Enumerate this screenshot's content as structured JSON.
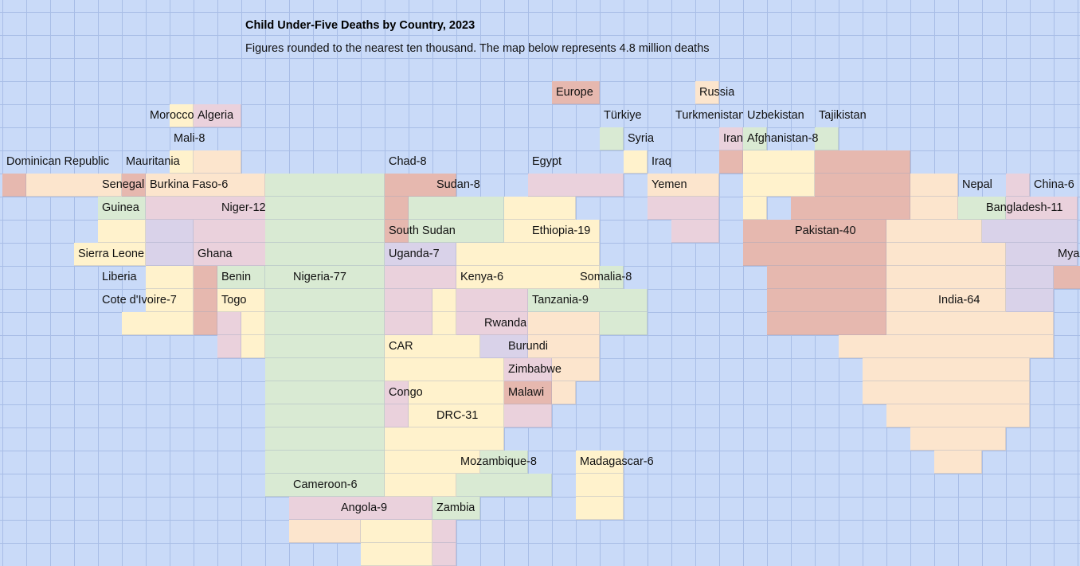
{
  "title": "Child Under-Five Deaths by Country, 2023",
  "subtitle": "Figures rounded to the nearest ten thousand. The map below represents 4.8 million deaths",
  "colors": {
    "background": "#c9daf8",
    "grid": "#a8bde6",
    "yellow": "#fff2cc",
    "orange": "#fce5cd",
    "green": "#d9ead3",
    "red": "#e6b8af",
    "pink": "#ead1dc",
    "purple": "#d9d2e9"
  },
  "labels": [
    "Europe",
    "Russia",
    "Morocco",
    "Algeria",
    "Türkiye",
    "Turkmenistan",
    "Uzbekistan",
    "Tajikistan",
    "Mali-8",
    "Syria",
    "Iran",
    "Afghanistan-8",
    "Dominican Republic",
    "Mauritania",
    "Chad-8",
    "Egypt",
    "Iraq",
    "Senegal",
    "Burkina Faso-6",
    "Sudan-8",
    "Yemen",
    "Nepal",
    "China-6",
    "Guinea",
    "Niger-12",
    "Bangladesh-11",
    "South Sudan",
    "Ethiopia-19",
    "Pakistan-40",
    "Sierra Leone",
    "Ghana",
    "Uganda-7",
    "Mya",
    "Liberia",
    "Benin",
    "Nigeria-77",
    "Kenya-6",
    "Somalia-8",
    "Cote d'Ivoire-7",
    "Togo",
    "Tanzania-9",
    "India-64",
    "Rwanda",
    "CAR",
    "Burundi",
    "Zimbabwe",
    "Congo",
    "Malawi",
    "DRC-31",
    "Mozambique-8",
    "Madagascar-6",
    "Cameroon-6",
    "Angola-9",
    "Zambia"
  ]
}
